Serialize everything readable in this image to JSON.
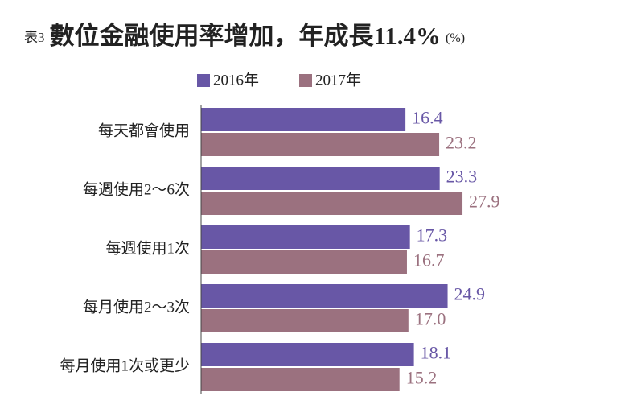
{
  "chart_data": {
    "type": "bar",
    "orientation": "horizontal",
    "table_label": "表3",
    "title": "數位金融使用率增加，年成長11.4%",
    "unit": "(%)",
    "categories": [
      "每天都會使用",
      "每週使用2～6次",
      "每週使用1次",
      "每月使用2～3次",
      "每月使用1次或更少"
    ],
    "series": [
      {
        "name": "2016年",
        "color": "#6857a6",
        "values": [
          16.4,
          23.3,
          17.3,
          24.9,
          18.1
        ],
        "value_labels": [
          "16.4",
          "23.3",
          "17.3",
          "24.9",
          "18.1"
        ]
      },
      {
        "name": "2017年",
        "color": "#9b717f",
        "values": [
          23.2,
          27.9,
          16.7,
          17.0,
          15.2
        ],
        "value_labels": [
          "23.2",
          "27.9",
          "16.7",
          "17.0",
          "15.2"
        ]
      }
    ],
    "xlim": [
      -24.8,
      30
    ]
  }
}
